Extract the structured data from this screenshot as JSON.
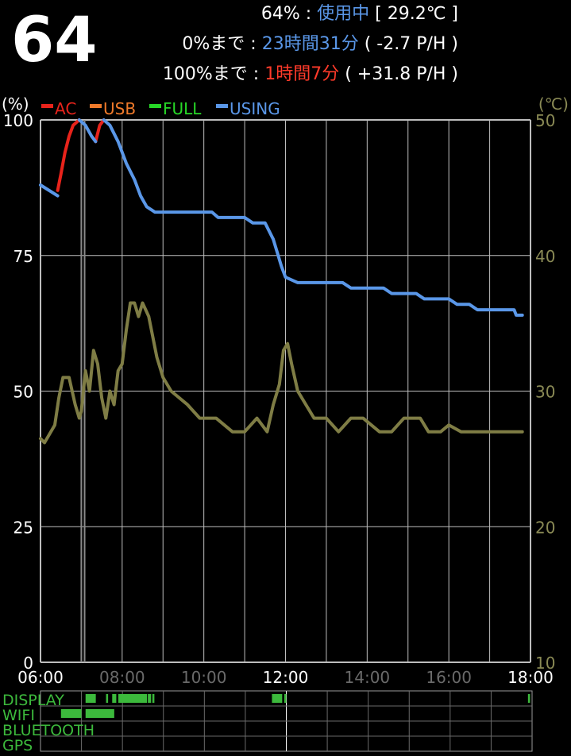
{
  "header": {
    "level_big": "64",
    "line1": {
      "percent": "64%",
      "sep": " : ",
      "state": "使用中",
      "temp": " [ 29.2℃ ]"
    },
    "line2": {
      "label": "0%まで",
      "sep": " : ",
      "time": "23時間31分",
      "rate": " ( -2.7 P/H )"
    },
    "line3": {
      "label": "100%まで",
      "sep": " : ",
      "time": "1時間7分",
      "rate": " ( +31.8 P/H )"
    }
  },
  "colors": {
    "ac": "#e8231b",
    "usb": "#f07a2a",
    "full": "#27d827",
    "using": "#5a97e8",
    "temp": "#7f7d45",
    "grid": "#bdbdbd",
    "status": "#3cb93c"
  },
  "chart_data": {
    "type": "line",
    "y_left_unit": "(%)",
    "y_right_unit": "(℃)",
    "legend": [
      {
        "name": "AC",
        "color": "#e8231b"
      },
      {
        "name": "USB",
        "color": "#f07a2a"
      },
      {
        "name": "FULL",
        "color": "#27d827"
      },
      {
        "name": "USING",
        "color": "#5a97e8"
      }
    ],
    "ylim_left": [
      0,
      100
    ],
    "ylim_right": [
      10,
      50
    ],
    "y_ticks_left": [
      "100",
      "75",
      "50",
      "25",
      "0"
    ],
    "y_ticks_right": [
      "50",
      "40",
      "30",
      "20",
      "10"
    ],
    "xlim_hours": [
      6,
      18
    ],
    "x_ticks": [
      {
        "label": "06:00",
        "hour": 6,
        "dim": false
      },
      {
        "label": "08:00",
        "hour": 8,
        "dim": true
      },
      {
        "label": "10:00",
        "hour": 10,
        "dim": true
      },
      {
        "label": "12:00",
        "hour": 12,
        "dim": false
      },
      {
        "label": "14:00",
        "hour": 14,
        "dim": true
      },
      {
        "label": "16:00",
        "hour": 16,
        "dim": true
      },
      {
        "label": "18:00",
        "hour": 18,
        "dim": false
      }
    ],
    "series": [
      {
        "name": "AC",
        "color": "#e8231b",
        "axis": "left",
        "segments": [
          [
            [
              6.42,
              87
            ],
            [
              6.5,
              90
            ],
            [
              6.6,
              94
            ],
            [
              6.7,
              97
            ],
            [
              6.8,
              99
            ],
            [
              6.95,
              100
            ]
          ],
          [
            [
              7.35,
              96
            ],
            [
              7.45,
              99
            ],
            [
              7.55,
              100
            ]
          ]
        ]
      },
      {
        "name": "USING",
        "color": "#5a97e8",
        "axis": "left",
        "segments": [
          [
            [
              6.0,
              88
            ],
            [
              6.42,
              86
            ]
          ],
          [
            [
              6.95,
              100
            ],
            [
              7.1,
              99
            ],
            [
              7.25,
              97
            ],
            [
              7.35,
              96
            ]
          ],
          [
            [
              7.55,
              100
            ],
            [
              7.7,
              99
            ],
            [
              7.9,
              96
            ],
            [
              8.1,
              92
            ],
            [
              8.3,
              89
            ],
            [
              8.45,
              86
            ],
            [
              8.6,
              84
            ],
            [
              8.8,
              83
            ],
            [
              10.2,
              83
            ],
            [
              10.35,
              82
            ],
            [
              11.0,
              82
            ],
            [
              11.2,
              81
            ],
            [
              11.5,
              81
            ],
            [
              11.7,
              78
            ],
            [
              11.9,
              73
            ],
            [
              12.0,
              71
            ],
            [
              12.3,
              70
            ],
            [
              13.4,
              70
            ],
            [
              13.6,
              69
            ],
            [
              14.4,
              69
            ],
            [
              14.6,
              68
            ],
            [
              15.2,
              68
            ],
            [
              15.4,
              67
            ],
            [
              16.0,
              67
            ],
            [
              16.2,
              66
            ],
            [
              16.5,
              66
            ],
            [
              16.7,
              65
            ],
            [
              17.6,
              65
            ],
            [
              17.65,
              64
            ],
            [
              17.8,
              64
            ]
          ]
        ]
      },
      {
        "name": "temperature",
        "color": "#7f7d45",
        "axis": "right",
        "points": [
          [
            6.0,
            26.5
          ],
          [
            6.1,
            26.2
          ],
          [
            6.35,
            27.5
          ],
          [
            6.45,
            29.5
          ],
          [
            6.55,
            31.0
          ],
          [
            6.7,
            31.0
          ],
          [
            6.85,
            29.0
          ],
          [
            6.95,
            28.0
          ],
          [
            7.0,
            28.5
          ],
          [
            7.1,
            31.5
          ],
          [
            7.2,
            30.0
          ],
          [
            7.3,
            33.0
          ],
          [
            7.4,
            32.0
          ],
          [
            7.5,
            29.5
          ],
          [
            7.6,
            28.0
          ],
          [
            7.7,
            30.0
          ],
          [
            7.8,
            29.0
          ],
          [
            7.9,
            31.5
          ],
          [
            8.0,
            32.0
          ],
          [
            8.1,
            34.5
          ],
          [
            8.2,
            36.5
          ],
          [
            8.3,
            36.5
          ],
          [
            8.4,
            35.5
          ],
          [
            8.5,
            36.5
          ],
          [
            8.65,
            35.5
          ],
          [
            8.85,
            32.5
          ],
          [
            9.0,
            31.0
          ],
          [
            9.2,
            30.0
          ],
          [
            9.6,
            29.0
          ],
          [
            9.9,
            28.0
          ],
          [
            10.3,
            28.0
          ],
          [
            10.7,
            27.0
          ],
          [
            11.0,
            27.0
          ],
          [
            11.3,
            28.0
          ],
          [
            11.55,
            27.0
          ],
          [
            11.7,
            29.0
          ],
          [
            11.85,
            30.5
          ],
          [
            11.95,
            33.0
          ],
          [
            12.05,
            33.5
          ],
          [
            12.15,
            32.0
          ],
          [
            12.3,
            30.0
          ],
          [
            12.5,
            29.0
          ],
          [
            12.7,
            28.0
          ],
          [
            13.0,
            28.0
          ],
          [
            13.3,
            27.0
          ],
          [
            13.6,
            28.0
          ],
          [
            13.9,
            28.0
          ],
          [
            14.3,
            27.0
          ],
          [
            14.6,
            27.0
          ],
          [
            14.9,
            28.0
          ],
          [
            15.3,
            28.0
          ],
          [
            15.5,
            27.0
          ],
          [
            15.8,
            27.0
          ],
          [
            16.0,
            27.5
          ],
          [
            16.3,
            27.0
          ],
          [
            17.8,
            27.0
          ]
        ]
      }
    ],
    "marker_hours": [
      7.0,
      7.08
    ],
    "status_rows": [
      {
        "name": "DISPLAY",
        "intervals": [
          [
            7.1,
            7.35
          ],
          [
            7.6,
            7.65
          ],
          [
            7.75,
            7.85
          ],
          [
            7.9,
            8.6
          ],
          [
            8.62,
            8.7
          ],
          [
            8.73,
            8.78
          ],
          [
            11.65,
            11.9
          ],
          [
            11.95,
            12.0
          ],
          [
            17.9,
            17.95
          ]
        ]
      },
      {
        "name": "WIFI",
        "intervals": [
          [
            6.5,
            7.0
          ],
          [
            7.1,
            7.8
          ]
        ]
      },
      {
        "name": "BLUETOOTH",
        "intervals": []
      },
      {
        "name": "GPS",
        "intervals": []
      }
    ]
  }
}
